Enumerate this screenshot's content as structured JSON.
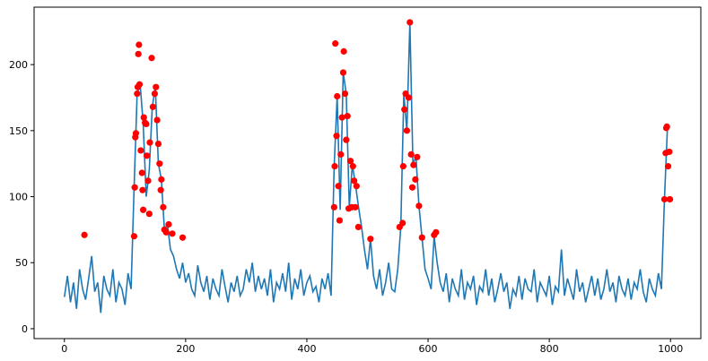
{
  "chart_data": {
    "type": "line",
    "xlim": [
      -50,
      1050
    ],
    "ylim": [
      -7.5,
      243.5
    ],
    "xticks": [
      0,
      200,
      400,
      600,
      800,
      1000
    ],
    "yticks": [
      0,
      50,
      100,
      150,
      200
    ],
    "grid": false,
    "series": [
      {
        "type": "line",
        "color": "#1f77b4",
        "x": [
          0,
          5,
          10,
          15,
          20,
          25,
          30,
          35,
          40,
          45,
          50,
          55,
          60,
          65,
          70,
          75,
          80,
          85,
          90,
          95,
          100,
          105,
          110,
          115,
          120,
          125,
          130,
          135,
          140,
          145,
          150,
          155,
          160,
          165,
          170,
          175,
          180,
          185,
          190,
          195,
          200,
          205,
          210,
          215,
          220,
          225,
          230,
          235,
          240,
          245,
          250,
          255,
          260,
          265,
          270,
          275,
          280,
          285,
          290,
          295,
          300,
          305,
          310,
          315,
          320,
          325,
          330,
          335,
          340,
          345,
          350,
          355,
          360,
          365,
          370,
          375,
          380,
          385,
          390,
          395,
          400,
          405,
          410,
          415,
          420,
          425,
          430,
          435,
          440,
          445,
          450,
          455,
          460,
          465,
          470,
          475,
          480,
          485,
          490,
          495,
          500,
          505,
          510,
          515,
          520,
          525,
          530,
          535,
          540,
          545,
          550,
          555,
          560,
          565,
          570,
          575,
          580,
          585,
          590,
          595,
          600,
          605,
          610,
          615,
          620,
          625,
          630,
          635,
          640,
          645,
          650,
          655,
          660,
          665,
          670,
          675,
          680,
          685,
          690,
          695,
          700,
          705,
          710,
          715,
          720,
          725,
          730,
          735,
          740,
          745,
          750,
          755,
          760,
          765,
          770,
          775,
          780,
          785,
          790,
          795,
          800,
          805,
          810,
          815,
          820,
          825,
          830,
          835,
          840,
          845,
          850,
          855,
          860,
          865,
          870,
          875,
          880,
          885,
          890,
          895,
          900,
          905,
          910,
          915,
          920,
          925,
          930,
          935,
          940,
          945,
          950,
          955,
          960,
          965,
          970,
          975,
          980,
          985,
          990,
          995
        ],
        "values": [
          24,
          40,
          20,
          35,
          15,
          45,
          30,
          22,
          38,
          55,
          28,
          35,
          12,
          40,
          30,
          25,
          45,
          20,
          35,
          30,
          18,
          42,
          30,
          107,
          178,
          185,
          155,
          100,
          120,
          168,
          183,
          125,
          113,
          75,
          79,
          60,
          55,
          45,
          38,
          50,
          35,
          42,
          30,
          25,
          48,
          35,
          28,
          40,
          22,
          38,
          30,
          25,
          45,
          32,
          20,
          35,
          28,
          40,
          25,
          30,
          45,
          35,
          50,
          28,
          40,
          30,
          38,
          25,
          45,
          20,
          35,
          30,
          42,
          28,
          50,
          22,
          38,
          30,
          45,
          25,
          35,
          40,
          28,
          32,
          20,
          38,
          30,
          42,
          25,
          122,
          176,
          90,
          194,
          178,
          92,
          124,
          110,
          93,
          78,
          60,
          45,
          68,
          40,
          30,
          45,
          25,
          35,
          50,
          30,
          28,
          45,
          77,
          178,
          150,
          232,
          125,
          130,
          93,
          69,
          45,
          38,
          30,
          70,
          50,
          35,
          28,
          42,
          20,
          38,
          30,
          25,
          45,
          22,
          35,
          30,
          40,
          18,
          32,
          28,
          45,
          25,
          38,
          20,
          30,
          42,
          28,
          35,
          15,
          30,
          25,
          40,
          22,
          38,
          30,
          28,
          45,
          20,
          35,
          30,
          25,
          40,
          18,
          32,
          28,
          60,
          25,
          38,
          30,
          22,
          45,
          28,
          35,
          20,
          30,
          40,
          25,
          38,
          22,
          30,
          45,
          28,
          35,
          20,
          40,
          30,
          25,
          38,
          22,
          35,
          30,
          45,
          28,
          20,
          38,
          30,
          25,
          42,
          30,
          98,
          153
        ]
      },
      {
        "type": "scatter",
        "color": "red",
        "x": [
          33,
          115,
          116,
          117,
          118,
          120,
          121,
          122,
          123,
          124,
          126,
          128,
          129,
          130,
          131,
          133,
          135,
          136,
          138,
          140,
          141,
          144,
          146,
          149,
          151,
          153,
          155,
          157,
          159,
          160,
          163,
          165,
          168,
          172,
          178,
          195,
          445,
          446,
          447,
          449,
          450,
          452,
          454,
          456,
          458,
          460,
          461,
          463,
          465,
          467,
          469,
          472,
          474,
          476,
          478,
          480,
          482,
          485,
          505,
          553,
          558,
          559,
          561,
          563,
          565,
          568,
          570,
          572,
          574,
          576,
          579,
          582,
          585,
          590,
          610,
          613,
          990,
          992,
          993,
          994,
          996,
          998,
          999
        ],
        "values": [
          71,
          70,
          107,
          145,
          148,
          178,
          183,
          208,
          215,
          185,
          135,
          118,
          105,
          90,
          160,
          156,
          155,
          131,
          112,
          87,
          141,
          205,
          168,
          178,
          183,
          158,
          140,
          125,
          105,
          113,
          92,
          75,
          73,
          79,
          72,
          69,
          92,
          123,
          216,
          146,
          176,
          108,
          82,
          132,
          160,
          194,
          210,
          178,
          143,
          161,
          91,
          127,
          92,
          123,
          112,
          92,
          108,
          77,
          68,
          77,
          80,
          123,
          166,
          178,
          150,
          175,
          232,
          132,
          107,
          124,
          113,
          130,
          93,
          69,
          71,
          73,
          98,
          133,
          152,
          153,
          123,
          134,
          98
        ]
      }
    ]
  }
}
